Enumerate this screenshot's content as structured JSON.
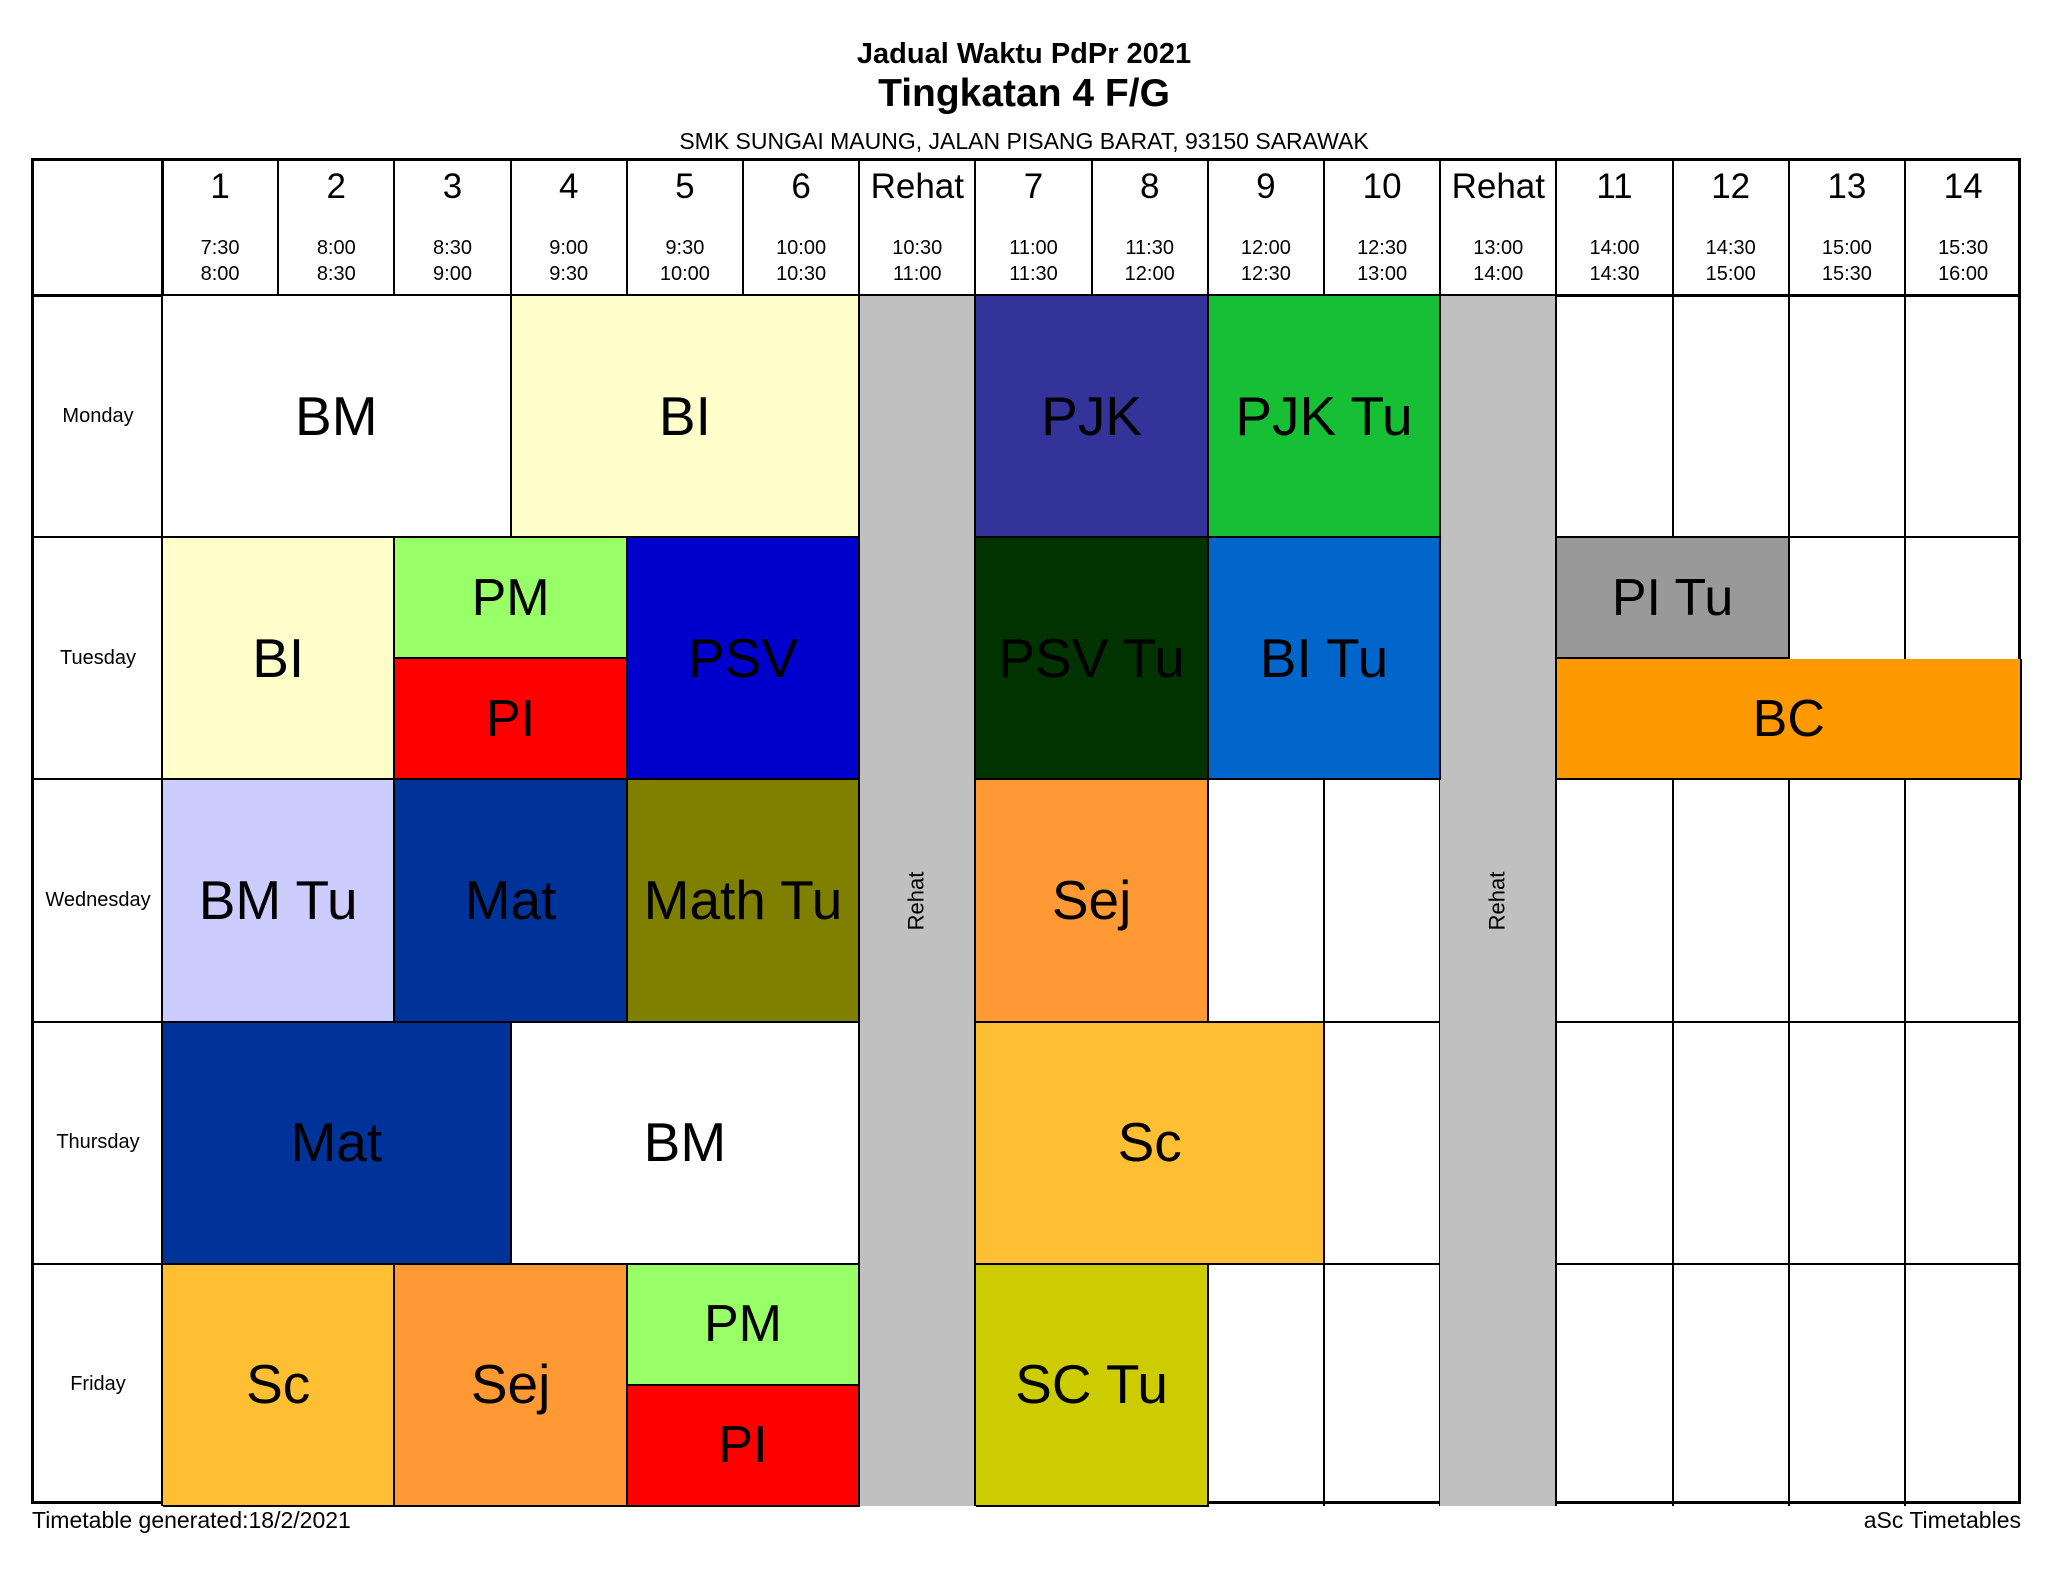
{
  "header": {
    "title": "Jadual Waktu PdPr 2021",
    "class_name": "Tingkatan 4 F/G",
    "school": "SMK SUNGAI MAUNG, JALAN PISANG BARAT, 93150 SARAWAK"
  },
  "periods": [
    {
      "label": "1",
      "start": "7:30",
      "end": "8:00"
    },
    {
      "label": "2",
      "start": "8:00",
      "end": "8:30"
    },
    {
      "label": "3",
      "start": "8:30",
      "end": "9:00"
    },
    {
      "label": "4",
      "start": "9:00",
      "end": "9:30"
    },
    {
      "label": "5",
      "start": "9:30",
      "end": "10:00"
    },
    {
      "label": "6",
      "start": "10:00",
      "end": "10:30"
    },
    {
      "label": "Rehat",
      "start": "10:30",
      "end": "11:00"
    },
    {
      "label": "7",
      "start": "11:00",
      "end": "11:30"
    },
    {
      "label": "8",
      "start": "11:30",
      "end": "12:00"
    },
    {
      "label": "9",
      "start": "12:00",
      "end": "12:30"
    },
    {
      "label": "10",
      "start": "12:30",
      "end": "13:00"
    },
    {
      "label": "Rehat",
      "start": "13:00",
      "end": "14:00"
    },
    {
      "label": "11",
      "start": "14:00",
      "end": "14:30"
    },
    {
      "label": "12",
      "start": "14:30",
      "end": "15:00"
    },
    {
      "label": "13",
      "start": "15:00",
      "end": "15:30"
    },
    {
      "label": "14",
      "start": "15:30",
      "end": "16:00"
    }
  ],
  "days": [
    "Monday",
    "Tuesday",
    "Wednesday",
    "Thursday",
    "Friday"
  ],
  "breaks": [
    {
      "label": "Rehat",
      "column": 6
    },
    {
      "label": "Rehat",
      "column": 11
    }
  ],
  "lessons": [
    {
      "subject": "BM",
      "day": 0,
      "col": 0,
      "span": 3,
      "half": "full",
      "color": "#ffffff"
    },
    {
      "subject": "BI",
      "day": 0,
      "col": 3,
      "span": 3,
      "half": "full",
      "color": "#ffffcc"
    },
    {
      "subject": "PJK",
      "day": 0,
      "col": 7,
      "span": 2,
      "half": "full",
      "color": "#333399"
    },
    {
      "subject": "PJK Tu",
      "day": 0,
      "col": 9,
      "span": 2,
      "half": "full",
      "color": "#16bf33"
    },
    {
      "subject": "BI",
      "day": 1,
      "col": 0,
      "span": 2,
      "half": "full",
      "color": "#ffffcc"
    },
    {
      "subject": "PM",
      "day": 1,
      "col": 2,
      "span": 2,
      "half": "top",
      "color": "#99ff66"
    },
    {
      "subject": "PI",
      "day": 1,
      "col": 2,
      "span": 2,
      "half": "bottom",
      "color": "#ff0000"
    },
    {
      "subject": "PSV",
      "day": 1,
      "col": 4,
      "span": 2,
      "half": "full",
      "color": "#0000cc"
    },
    {
      "subject": "PSV Tu",
      "day": 1,
      "col": 7,
      "span": 2,
      "half": "full",
      "color": "#003300"
    },
    {
      "subject": "BI Tu",
      "day": 1,
      "col": 9,
      "span": 2,
      "half": "full",
      "color": "#0066cc"
    },
    {
      "subject": "PI Tu",
      "day": 1,
      "col": 12,
      "span": 2,
      "half": "top",
      "color": "#999999"
    },
    {
      "subject": "BC",
      "day": 1,
      "col": 12,
      "span": 4,
      "half": "bottom",
      "color": "#ff9900"
    },
    {
      "subject": "BM Tu",
      "day": 2,
      "col": 0,
      "span": 2,
      "half": "full",
      "color": "#ccccff"
    },
    {
      "subject": "Mat",
      "day": 2,
      "col": 2,
      "span": 2,
      "half": "full",
      "color": "#003399"
    },
    {
      "subject": "Math Tu",
      "day": 2,
      "col": 4,
      "span": 2,
      "half": "full",
      "color": "#808000"
    },
    {
      "subject": "Sej",
      "day": 2,
      "col": 7,
      "span": 2,
      "half": "full",
      "color": "#ff9933"
    },
    {
      "subject": "Mat",
      "day": 3,
      "col": 0,
      "span": 3,
      "half": "full",
      "color": "#003399"
    },
    {
      "subject": "BM",
      "day": 3,
      "col": 3,
      "span": 3,
      "half": "full",
      "color": "#ffffff"
    },
    {
      "subject": "Sc",
      "day": 3,
      "col": 7,
      "span": 3,
      "half": "full",
      "color": "#ffbf33"
    },
    {
      "subject": "Sc",
      "day": 4,
      "col": 0,
      "span": 2,
      "half": "full",
      "color": "#ffbf33"
    },
    {
      "subject": "Sej",
      "day": 4,
      "col": 2,
      "span": 2,
      "half": "full",
      "color": "#ff9933"
    },
    {
      "subject": "PM",
      "day": 4,
      "col": 4,
      "span": 2,
      "half": "top",
      "color": "#99ff66"
    },
    {
      "subject": "PI",
      "day": 4,
      "col": 4,
      "span": 2,
      "half": "bottom",
      "color": "#ff0000"
    },
    {
      "subject": "SC Tu",
      "day": 4,
      "col": 7,
      "span": 2,
      "half": "full",
      "color": "#cccc00"
    }
  ],
  "footer": {
    "generated": "Timetable generated:18/2/2021",
    "software": "aSc Timetables"
  }
}
